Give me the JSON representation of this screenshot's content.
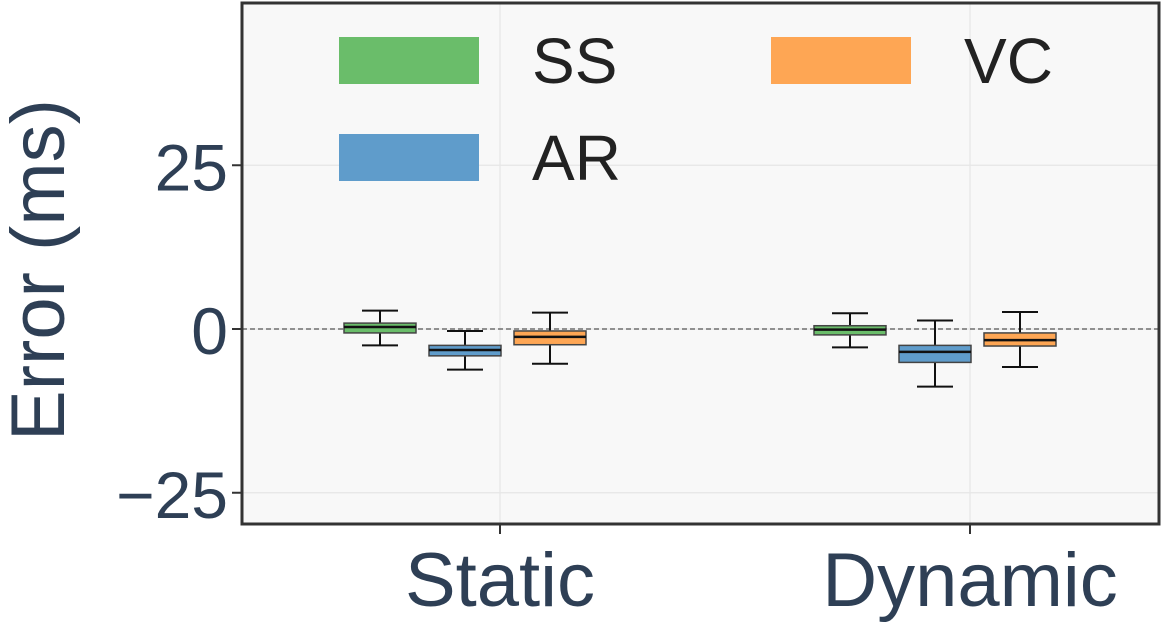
{
  "chart_data": {
    "type": "boxplot",
    "title": "",
    "xlabel": "",
    "ylabel": "Error (ms)",
    "ylim": [
      -30,
      50
    ],
    "yticks": [
      25,
      0,
      -25
    ],
    "ytick_labels": [
      "25",
      "0",
      "−25"
    ],
    "categories": [
      "Static",
      "Dynamic"
    ],
    "grid": true,
    "reference_line": 0,
    "legend_position": "top",
    "series": [
      {
        "name": "SS",
        "color": "#6abd6a",
        "boxes": [
          {
            "whisker_low": -2.5,
            "q1": -0.6,
            "median": 0.3,
            "q3": 0.9,
            "whisker_high": 2.8
          },
          {
            "whisker_low": -2.8,
            "q1": -0.9,
            "median": -0.1,
            "q3": 0.5,
            "whisker_high": 2.4
          }
        ]
      },
      {
        "name": "AR",
        "color": "#5f9ccb",
        "boxes": [
          {
            "whisker_low": -6.2,
            "q1": -4.1,
            "median": -3.2,
            "q3": -2.5,
            "whisker_high": -0.3
          },
          {
            "whisker_low": -8.8,
            "q1": -5.1,
            "median": -3.5,
            "q3": -2.5,
            "whisker_high": 1.3
          }
        ]
      },
      {
        "name": "VC",
        "color": "#fea654",
        "boxes": [
          {
            "whisker_low": -5.3,
            "q1": -2.4,
            "median": -1.2,
            "q3": -0.3,
            "whisker_high": 2.5
          },
          {
            "whisker_low": -5.8,
            "q1": -2.6,
            "median": -1.7,
            "q3": -0.6,
            "whisker_high": 2.6
          }
        ]
      }
    ]
  }
}
